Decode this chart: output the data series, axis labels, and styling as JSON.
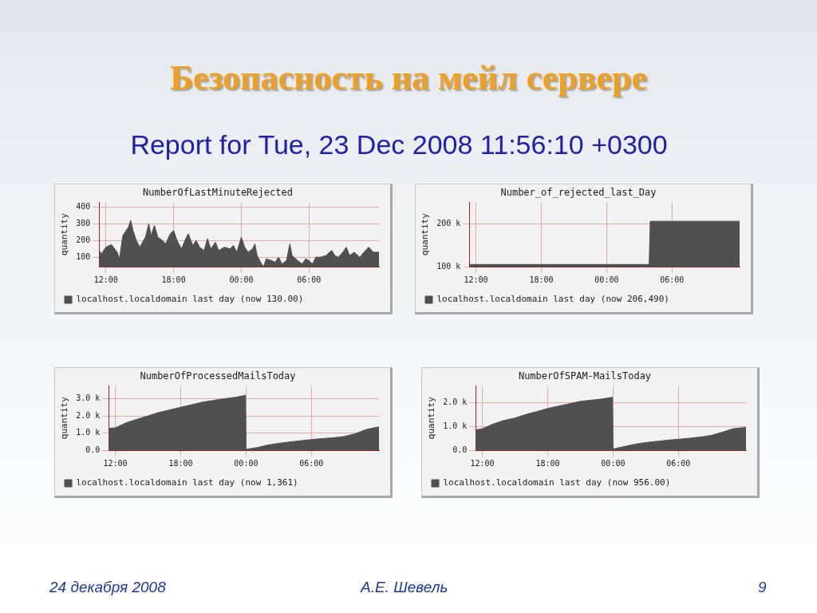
{
  "chart_data": [
    {
      "type": "other",
      "title": "Безопасность на мейл сервере",
      "subtitle": "Report for Tue, 23 Dec 2008 11:56:10 +0300",
      "annotations": [
        "24 декабря 2008",
        "А.Е. Шевель",
        "9"
      ]
    },
    {
      "type": "area",
      "title": "NumberOfLastMinuteRejected",
      "ylabel": "quantity",
      "xlim": [
        "2008-12-22T11:24",
        "2008-12-23T12:12"
      ],
      "xticks": [
        {
          "value": "2008-12-22T12:00",
          "label": "12:00"
        },
        {
          "value": "2008-12-22T18:00",
          "label": "18:00"
        },
        {
          "value": "2008-12-23T00:00",
          "label": "00:00"
        },
        {
          "value": "2008-12-23T06:00",
          "label": "06:00"
        }
      ],
      "ylim": [
        44,
        428
      ],
      "yticks": [
        100,
        200,
        300,
        400
      ],
      "grid": true,
      "legend": "bottom",
      "marker": "none",
      "series": [
        {
          "name": "localhost.localdomain last day (now 130.00)",
          "color": "#505050",
          "x": [
            "2008-12-22T11:24",
            "2008-12-22T11:36",
            "2008-12-22T12:00",
            "2008-12-22T12:30",
            "2008-12-22T13:00",
            "2008-12-22T13:12",
            "2008-12-22T13:30",
            "2008-12-22T14:00",
            "2008-12-22T14:12",
            "2008-12-22T14:24",
            "2008-12-22T14:42",
            "2008-12-22T15:00",
            "2008-12-22T15:30",
            "2008-12-22T15:48",
            "2008-12-22T16:00",
            "2008-12-22T16:18",
            "2008-12-22T16:36",
            "2008-12-22T17:00",
            "2008-12-22T17:18",
            "2008-12-22T17:42",
            "2008-12-22T18:00",
            "2008-12-22T18:18",
            "2008-12-22T18:42",
            "2008-12-22T19:00",
            "2008-12-22T19:18",
            "2008-12-22T19:42",
            "2008-12-22T20:00",
            "2008-12-22T20:18",
            "2008-12-22T20:42",
            "2008-12-22T21:00",
            "2008-12-22T21:18",
            "2008-12-22T21:42",
            "2008-12-22T22:00",
            "2008-12-22T22:30",
            "2008-12-22T23:00",
            "2008-12-22T23:18",
            "2008-12-22T23:36",
            "2008-12-23T00:00",
            "2008-12-23T00:18",
            "2008-12-23T00:36",
            "2008-12-23T01:00",
            "2008-12-23T01:12",
            "2008-12-23T01:24",
            "2008-12-23T01:48",
            "2008-12-23T02:00",
            "2008-12-23T02:12",
            "2008-12-23T02:42",
            "2008-12-23T03:00",
            "2008-12-23T03:18",
            "2008-12-23T03:36",
            "2008-12-23T04:00",
            "2008-12-23T04:18",
            "2008-12-23T04:30",
            "2008-12-23T05:00",
            "2008-12-23T05:24",
            "2008-12-23T05:42",
            "2008-12-23T06:00",
            "2008-12-23T06:18",
            "2008-12-23T06:36",
            "2008-12-23T07:00",
            "2008-12-23T07:30",
            "2008-12-23T08:00",
            "2008-12-23T08:18",
            "2008-12-23T08:36",
            "2008-12-23T09:00",
            "2008-12-23T09:18",
            "2008-12-23T09:36",
            "2008-12-23T10:00",
            "2008-12-23T10:30",
            "2008-12-23T11:00",
            "2008-12-23T11:18",
            "2008-12-23T11:42",
            "2008-12-23T12:12"
          ],
          "values": [
            140,
            120,
            160,
            175,
            130,
            90,
            230,
            280,
            320,
            260,
            200,
            160,
            220,
            300,
            230,
            290,
            220,
            200,
            180,
            240,
            260,
            200,
            150,
            200,
            240,
            170,
            200,
            160,
            140,
            210,
            150,
            190,
            140,
            160,
            150,
            170,
            130,
            220,
            160,
            130,
            150,
            180,
            110,
            60,
            45,
            90,
            80,
            70,
            100,
            60,
            80,
            180,
            110,
            80,
            60,
            90,
            80,
            60,
            100,
            100,
            110,
            140,
            110,
            100,
            130,
            160,
            110,
            130,
            100,
            140,
            160,
            130,
            130
          ]
        }
      ]
    },
    {
      "type": "area",
      "title": "Number_of_rejected_last_Day",
      "ylabel": "quantity",
      "xlim": [
        "2008-12-22T11:24",
        "2008-12-23T12:12"
      ],
      "xticks": [
        {
          "value": "2008-12-22T12:00",
          "label": "12:00"
        },
        {
          "value": "2008-12-22T18:00",
          "label": "18:00"
        },
        {
          "value": "2008-12-23T00:00",
          "label": "00:00"
        },
        {
          "value": "2008-12-23T06:00",
          "label": "06:00"
        }
      ],
      "ylim": [
        100000,
        251000
      ],
      "yticks": [
        {
          "value": 100000,
          "label": "100 k"
        },
        {
          "value": 200000,
          "label": "200 k"
        }
      ],
      "grid": true,
      "legend": "bottom",
      "marker": "none",
      "series": [
        {
          "name": "localhost.localdomain last day (now 206,490)",
          "color": "#505050",
          "x": [
            "2008-12-22T11:24",
            "2008-12-23T03:54",
            "2008-12-23T04:00",
            "2008-12-23T12:12"
          ],
          "values": [
            105000,
            105000,
            206490,
            206490
          ]
        }
      ]
    },
    {
      "type": "area",
      "title": "NumberOfProcessedMailsToday",
      "ylabel": "quantity",
      "xlim": [
        "2008-12-22T11:24",
        "2008-12-23T12:12"
      ],
      "xticks": [
        {
          "value": "2008-12-22T12:00",
          "label": "12:00"
        },
        {
          "value": "2008-12-22T18:00",
          "label": "18:00"
        },
        {
          "value": "2008-12-23T00:00",
          "label": "00:00"
        },
        {
          "value": "2008-12-23T06:00",
          "label": "06:00"
        }
      ],
      "ylim": [
        0,
        3750
      ],
      "yticks": [
        {
          "value": 0,
          "label": "0.0"
        },
        {
          "value": 1000,
          "label": "1.0 k"
        },
        {
          "value": 2000,
          "label": "2.0 k"
        },
        {
          "value": 3000,
          "label": "3.0 k"
        }
      ],
      "grid": true,
      "legend": "bottom",
      "marker": "none",
      "series": [
        {
          "name": "localhost.localdomain last day (now 1,361)",
          "color": "#505050",
          "x": [
            "2008-12-22T11:24",
            "2008-12-22T12:00",
            "2008-12-22T13:00",
            "2008-12-22T14:00",
            "2008-12-22T15:00",
            "2008-12-22T16:00",
            "2008-12-22T17:00",
            "2008-12-22T18:00",
            "2008-12-22T19:00",
            "2008-12-22T20:00",
            "2008-12-22T21:00",
            "2008-12-22T22:00",
            "2008-12-22T23:00",
            "2008-12-22T23:57",
            "2008-12-23T00:00",
            "2008-12-23T01:00",
            "2008-12-23T02:00",
            "2008-12-23T03:00",
            "2008-12-23T04:00",
            "2008-12-23T05:00",
            "2008-12-23T06:00",
            "2008-12-23T07:00",
            "2008-12-23T08:00",
            "2008-12-23T09:00",
            "2008-12-23T10:00",
            "2008-12-23T11:00",
            "2008-12-23T12:12"
          ],
          "values": [
            1270,
            1300,
            1600,
            1800,
            2000,
            2200,
            2350,
            2500,
            2650,
            2800,
            2900,
            3000,
            3080,
            3200,
            50,
            150,
            300,
            400,
            480,
            550,
            620,
            680,
            720,
            800,
            950,
            1200,
            1361
          ]
        }
      ]
    },
    {
      "type": "area",
      "title": "NumberOfSPAM-MailsToday",
      "ylabel": "quantity",
      "xlim": [
        "2008-12-22T11:24",
        "2008-12-23T12:12"
      ],
      "xticks": [
        {
          "value": "2008-12-22T12:00",
          "label": "12:00"
        },
        {
          "value": "2008-12-22T18:00",
          "label": "18:00"
        },
        {
          "value": "2008-12-23T00:00",
          "label": "00:00"
        },
        {
          "value": "2008-12-23T06:00",
          "label": "06:00"
        }
      ],
      "ylim": [
        0,
        2700
      ],
      "yticks": [
        {
          "value": 0,
          "label": "0.0"
        },
        {
          "value": 1000,
          "label": "1.0 k"
        },
        {
          "value": 2000,
          "label": "2.0 k"
        }
      ],
      "grid": true,
      "legend": "bottom",
      "marker": "none",
      "series": [
        {
          "name": "localhost.localdomain last day (now 956.00)",
          "color": "#505050",
          "x": [
            "2008-12-22T11:24",
            "2008-12-22T12:00",
            "2008-12-22T13:00",
            "2008-12-22T14:00",
            "2008-12-22T15:00",
            "2008-12-22T16:00",
            "2008-12-22T17:00",
            "2008-12-22T18:00",
            "2008-12-22T19:00",
            "2008-12-22T20:00",
            "2008-12-22T21:00",
            "2008-12-22T22:00",
            "2008-12-22T23:00",
            "2008-12-22T23:57",
            "2008-12-23T00:00",
            "2008-12-23T01:00",
            "2008-12-23T02:00",
            "2008-12-23T03:00",
            "2008-12-23T04:00",
            "2008-12-23T05:00",
            "2008-12-23T06:00",
            "2008-12-23T07:00",
            "2008-12-23T08:00",
            "2008-12-23T09:00",
            "2008-12-23T10:00",
            "2008-12-23T11:00",
            "2008-12-23T12:12"
          ],
          "values": [
            850,
            900,
            1100,
            1250,
            1350,
            1500,
            1620,
            1750,
            1850,
            1950,
            2050,
            2100,
            2150,
            2220,
            50,
            150,
            250,
            320,
            370,
            420,
            460,
            500,
            550,
            620,
            750,
            900,
            956
          ]
        }
      ]
    }
  ]
}
